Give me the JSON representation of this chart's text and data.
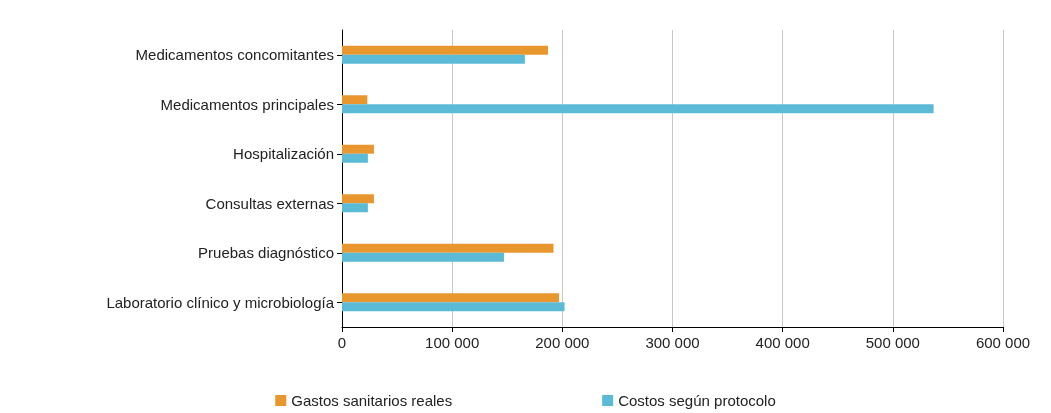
{
  "chart_data": {
    "type": "bar",
    "orientation": "horizontal",
    "categories": [
      "Medicamentos concomitantes",
      "Medicamentos principales",
      "Hospitalización",
      "Consultas externas",
      "Pruebas diagnóstico",
      "Laboratorio clínico y microbiología"
    ],
    "series": [
      {
        "name": "Gastos sanitarios reales",
        "color": "#e8962e",
        "values": [
          187000,
          23000,
          29000,
          29000,
          192000,
          197000
        ]
      },
      {
        "name": "Costos según protocolo",
        "color": "#5bbad5",
        "values": [
          166000,
          537000,
          23500,
          23500,
          147000,
          202000
        ]
      }
    ],
    "xlim": [
      0,
      600000
    ],
    "xticks": [
      {
        "value": 0,
        "label": "0"
      },
      {
        "value": 100000,
        "label": "100 000"
      },
      {
        "value": 200000,
        "label": "200 000"
      },
      {
        "value": 300000,
        "label": "300 000"
      },
      {
        "value": 400000,
        "label": "400 000"
      },
      {
        "value": 500000,
        "label": "500 000"
      },
      {
        "value": 600000,
        "label": "600 000"
      }
    ],
    "grid": "x",
    "legend": "bottom"
  }
}
